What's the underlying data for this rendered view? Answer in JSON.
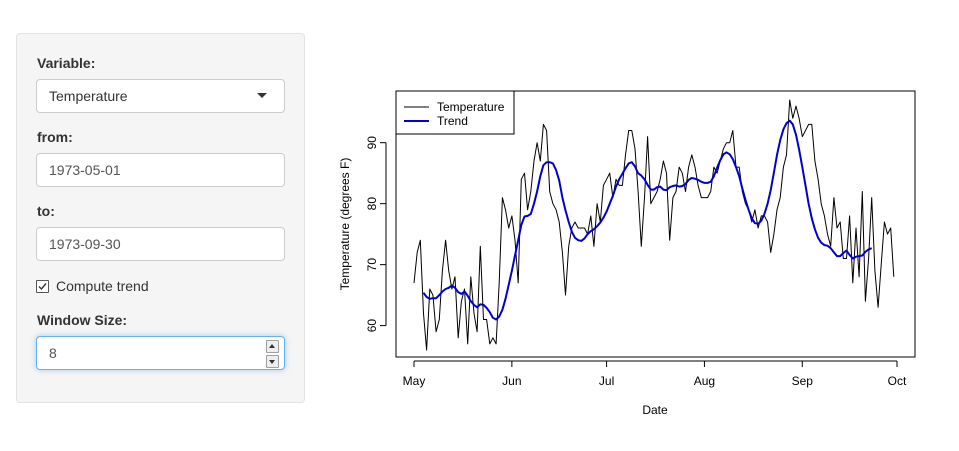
{
  "sidebar": {
    "variable_label": "Variable:",
    "variable_value": "Temperature",
    "from_label": "from:",
    "from_value": "1973-05-01",
    "to_label": "to:",
    "to_value": "1973-09-30",
    "trend_checkbox_label": "Compute trend",
    "trend_checked": true,
    "window_label": "Window Size:",
    "window_value": "8"
  },
  "chart_data": {
    "type": "line",
    "title": "",
    "xlabel": "Date",
    "ylabel": "Temperature (degrees F)",
    "xlim": [
      "1973-05-01",
      "1973-10-01"
    ],
    "ylim": [
      56,
      97
    ],
    "x_ticks": [
      "May",
      "Jun",
      "Jul",
      "Aug",
      "Sep",
      "Oct"
    ],
    "x_tick_dates": [
      "1973-05-01",
      "1973-06-01",
      "1973-07-01",
      "1973-08-01",
      "1973-09-01",
      "1973-10-01"
    ],
    "y_ticks": [
      60,
      70,
      80,
      90
    ],
    "legend": {
      "position": "top-left",
      "entries": [
        "Temperature",
        "Trend"
      ]
    },
    "grid": false,
    "series": [
      {
        "name": "Temperature",
        "color": "#000000",
        "x_start": "1973-05-01",
        "values": [
          67,
          72,
          74,
          62,
          56,
          66,
          65,
          59,
          61,
          69,
          74,
          69,
          66,
          68,
          58,
          64,
          66,
          57,
          68,
          62,
          59,
          73,
          61,
          61,
          57,
          58,
          57,
          67,
          81,
          79,
          76,
          78,
          74,
          67,
          84,
          85,
          79,
          82,
          87,
          90,
          87,
          93,
          92,
          82,
          80,
          79,
          77,
          72,
          65,
          73,
          76,
          77,
          76,
          76,
          76,
          75,
          78,
          73,
          80,
          77,
          83,
          84,
          85,
          81,
          84,
          83,
          83,
          88,
          92,
          92,
          89,
          82,
          73,
          81,
          91,
          80,
          81,
          82,
          84,
          87,
          85,
          74,
          81,
          82,
          86,
          85,
          82,
          86,
          88,
          86,
          83,
          81,
          81,
          81,
          82,
          86,
          85,
          87,
          89,
          90,
          90,
          92,
          86,
          86,
          82,
          80,
          79,
          77,
          79,
          76,
          78,
          78,
          77,
          72,
          75,
          79,
          81,
          86,
          88,
          97,
          94,
          96,
          94,
          91,
          92,
          93,
          93,
          87,
          84,
          80,
          78,
          75,
          73,
          81,
          76,
          77,
          71,
          71,
          78,
          67,
          76,
          68,
          82,
          64,
          71,
          81,
          69,
          63,
          70,
          77,
          75,
          76,
          68
        ]
      },
      {
        "name": "Trend",
        "color": "#0000cc",
        "x_start": "1973-05-04",
        "values": [
          65.4,
          64.7,
          64.4,
          64.5,
          64.5,
          65.0,
          65.6,
          66.0,
          66.2,
          66.6,
          66.2,
          65.5,
          65.2,
          65.6,
          64.9,
          64.0,
          63.4,
          63.0,
          63.5,
          63.4,
          62.9,
          62.2,
          61.3,
          61.0,
          61.5,
          62.6,
          64.4,
          66.7,
          69.0,
          71.5,
          74.0,
          76.5,
          77.9,
          78.0,
          78.3,
          80.0,
          82.0,
          84.5,
          86.3,
          86.8,
          86.8,
          86.6,
          85.5,
          83.8,
          81.0,
          78.9,
          77.0,
          75.4,
          74.4,
          74.0,
          73.9,
          74.3,
          75.0,
          75.5,
          75.8,
          76.3,
          76.9,
          77.7,
          78.7,
          80.0,
          81.3,
          82.8,
          84.0,
          84.9,
          85.8,
          86.6,
          86.8,
          86.1,
          85.0,
          84.6,
          84.0,
          83.1,
          82.3,
          82.3,
          82.7,
          82.8,
          82.3,
          82.2,
          82.7,
          82.9,
          83.0,
          82.8,
          82.9,
          83.2,
          83.9,
          84.2,
          84.1,
          83.9,
          83.6,
          83.4,
          83.4,
          83.6,
          84.5,
          85.9,
          87.1,
          88.1,
          88.4,
          88.1,
          87.3,
          86.0,
          84.5,
          82.5,
          80.6,
          79.0,
          77.6,
          76.8,
          76.7,
          77.2,
          78.3,
          80.0,
          82.2,
          85.1,
          88.0,
          90.4,
          92.2,
          93.2,
          93.6,
          93.0,
          91.3,
          88.9,
          86.0,
          83.0,
          80.0,
          77.6,
          75.8,
          74.4,
          73.6,
          73.2,
          73.1,
          72.7,
          72.0,
          71.4,
          71.4,
          71.9,
          72.3,
          71.6,
          71.0,
          71.3,
          71.4,
          71.5,
          72.1,
          72.5,
          72.7
        ]
      }
    ]
  }
}
